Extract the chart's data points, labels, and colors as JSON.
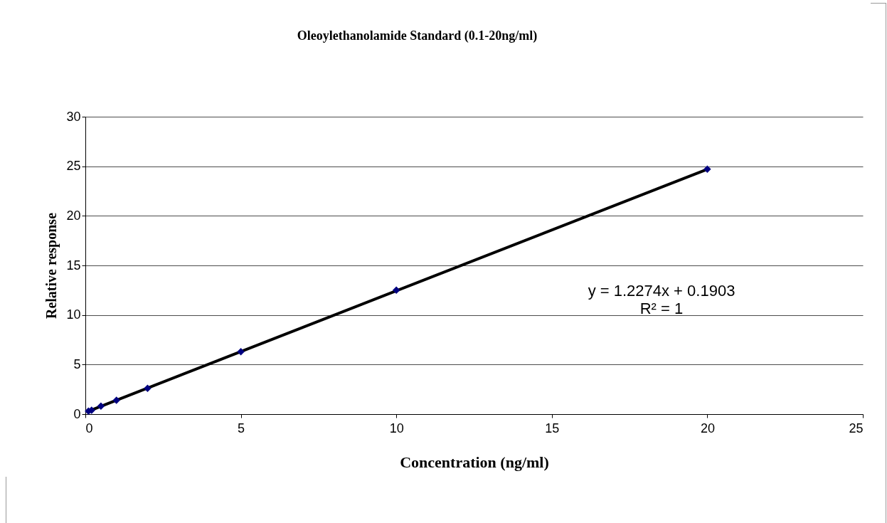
{
  "chart_data": {
    "type": "scatter",
    "title": "Oleoylethanolamide Standard (0.1-20ng/ml)",
    "xlabel": "Concentration (ng/ml)",
    "ylabel": "Relative response",
    "x": [
      0.1,
      0.2,
      0.5,
      1,
      2,
      5,
      10,
      20
    ],
    "series": [
      {
        "color": "#000080",
        "values": [
          0.3,
          0.4,
          0.8,
          1.4,
          2.6,
          6.3,
          12.5,
          24.7
        ]
      },
      {
        "type": "line",
        "marker": "none",
        "color": "#000000",
        "x": [
          0.1,
          20
        ],
        "values": [
          0.3,
          24.7
        ]
      }
    ],
    "xlim": [
      0,
      25
    ],
    "xticks": [
      0,
      5,
      10,
      15,
      20,
      25
    ],
    "ylim": [
      0,
      30
    ],
    "yticks": [
      0,
      5,
      10,
      15,
      20,
      25,
      30
    ],
    "grid": "y",
    "marker": "diamond",
    "annotations": [
      "y = 1.2274x + 0.1903",
      "R² = 1"
    ]
  }
}
